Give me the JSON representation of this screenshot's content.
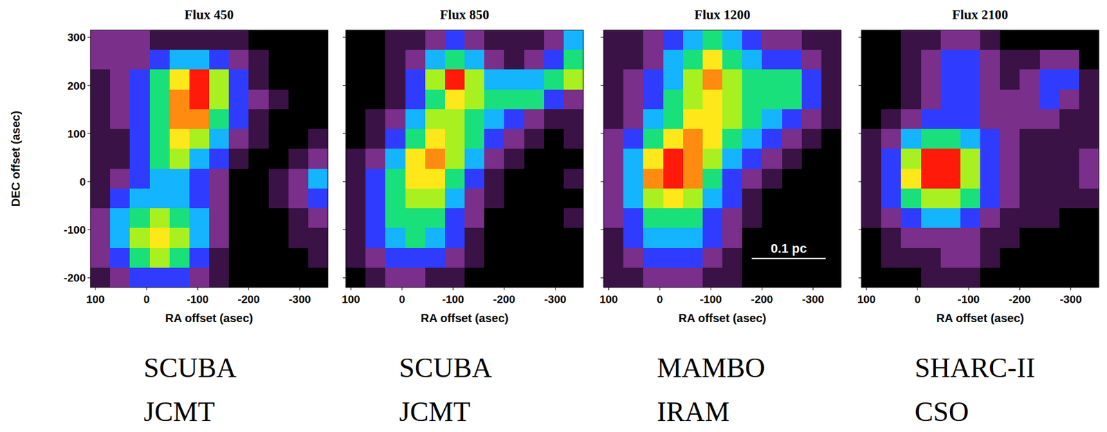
{
  "chart_data": [
    {
      "type": "heatmap",
      "title": "Flux 450",
      "x_label": "RA offset (asec)",
      "y_label": "DEC offset (asec)",
      "xlim": [
        110,
        -355
      ],
      "ylim": [
        -220,
        315
      ],
      "xticks": [
        100,
        0,
        -100,
        -200,
        -300
      ],
      "yticks": [
        -200,
        -100,
        0,
        100,
        200,
        300
      ],
      "zlim": [
        0,
        9
      ],
      "z": [
        [
          2,
          2,
          2,
          1,
          1,
          1,
          1,
          1,
          0,
          0,
          0,
          0
        ],
        [
          2,
          2,
          2,
          3,
          4,
          4,
          3,
          2,
          1,
          0,
          0,
          0
        ],
        [
          1,
          2,
          3,
          5,
          7,
          9,
          6,
          3,
          1,
          0,
          0,
          0
        ],
        [
          1,
          2,
          3,
          5,
          8,
          9,
          6,
          3,
          2,
          1,
          0,
          0
        ],
        [
          1,
          2,
          3,
          5,
          8,
          8,
          5,
          3,
          1,
          0,
          0,
          0
        ],
        [
          1,
          1,
          3,
          5,
          7,
          6,
          4,
          2,
          1,
          0,
          0,
          1
        ],
        [
          1,
          1,
          3,
          5,
          6,
          4,
          3,
          1,
          0,
          0,
          1,
          2
        ],
        [
          1,
          2,
          3,
          4,
          4,
          3,
          2,
          0,
          0,
          1,
          2,
          4
        ],
        [
          1,
          3,
          4,
          4,
          4,
          3,
          2,
          0,
          0,
          1,
          2,
          3
        ],
        [
          2,
          4,
          5,
          6,
          5,
          4,
          2,
          0,
          0,
          0,
          1,
          2
        ],
        [
          2,
          4,
          6,
          7,
          6,
          4,
          2,
          0,
          0,
          0,
          1,
          1
        ],
        [
          2,
          3,
          5,
          6,
          5,
          3,
          1,
          0,
          0,
          0,
          0,
          1
        ],
        [
          1,
          2,
          3,
          3,
          3,
          2,
          1,
          0,
          0,
          0,
          0,
          0
        ]
      ],
      "instrument": "SCUBA",
      "telescope": "JCMT"
    },
    {
      "type": "heatmap",
      "title": "Flux 850",
      "x_label": "RA offset (asec)",
      "tick_labels": "x",
      "xlim": [
        110,
        -355
      ],
      "ylim": [
        -220,
        315
      ],
      "xticks": [
        100,
        0,
        -100,
        -200,
        -300
      ],
      "yticks": [
        -200,
        -100,
        0,
        100,
        200,
        300
      ],
      "zlim": [
        0,
        9
      ],
      "z": [
        [
          0,
          0,
          1,
          1,
          2,
          3,
          2,
          1,
          1,
          1,
          2,
          4
        ],
        [
          0,
          0,
          1,
          2,
          4,
          5,
          4,
          2,
          1,
          2,
          3,
          5
        ],
        [
          0,
          0,
          1,
          3,
          6,
          9,
          6,
          4,
          4,
          4,
          5,
          6
        ],
        [
          0,
          0,
          1,
          3,
          5,
          7,
          6,
          5,
          5,
          5,
          3,
          2
        ],
        [
          0,
          1,
          2,
          4,
          6,
          6,
          5,
          4,
          3,
          2,
          1,
          1
        ],
        [
          0,
          1,
          3,
          5,
          7,
          6,
          5,
          3,
          2,
          1,
          0,
          1
        ],
        [
          1,
          2,
          4,
          7,
          8,
          6,
          4,
          2,
          1,
          0,
          0,
          0
        ],
        [
          1,
          3,
          5,
          7,
          7,
          5,
          3,
          1,
          0,
          0,
          0,
          1
        ],
        [
          1,
          3,
          5,
          6,
          6,
          4,
          2,
          1,
          0,
          0,
          0,
          0
        ],
        [
          1,
          3,
          5,
          5,
          5,
          3,
          2,
          0,
          0,
          0,
          0,
          1
        ],
        [
          1,
          3,
          4,
          5,
          4,
          3,
          1,
          0,
          0,
          0,
          0,
          0
        ],
        [
          1,
          2,
          3,
          3,
          3,
          2,
          1,
          0,
          0,
          0,
          0,
          0
        ],
        [
          0,
          1,
          2,
          2,
          1,
          1,
          0,
          0,
          0,
          0,
          0,
          0
        ]
      ],
      "instrument": "SCUBA",
      "telescope": "JCMT"
    },
    {
      "type": "heatmap",
      "title": "Flux 1200",
      "x_label": "RA offset (asec)",
      "tick_labels": "x",
      "xlim": [
        110,
        -355
      ],
      "ylim": [
        -220,
        315
      ],
      "xticks": [
        100,
        0,
        -100,
        -200,
        -300
      ],
      "yticks": [
        -200,
        -100,
        0,
        100,
        200,
        300
      ],
      "zlim": [
        0,
        9
      ],
      "z": [
        [
          1,
          1,
          2,
          3,
          4,
          5,
          4,
          3,
          2,
          2,
          1,
          1
        ],
        [
          1,
          1,
          2,
          4,
          5,
          7,
          5,
          4,
          3,
          3,
          2,
          1
        ],
        [
          1,
          2,
          3,
          4,
          6,
          8,
          6,
          5,
          5,
          5,
          3,
          1
        ],
        [
          1,
          2,
          3,
          5,
          6,
          7,
          6,
          5,
          5,
          5,
          3,
          1
        ],
        [
          1,
          2,
          4,
          5,
          7,
          7,
          6,
          5,
          4,
          3,
          2,
          1
        ],
        [
          2,
          3,
          5,
          7,
          8,
          7,
          5,
          4,
          3,
          2,
          1,
          0
        ],
        [
          2,
          4,
          7,
          9,
          8,
          6,
          4,
          3,
          2,
          1,
          0,
          0
        ],
        [
          2,
          4,
          8,
          9,
          8,
          5,
          3,
          2,
          1,
          0,
          0,
          0
        ],
        [
          2,
          4,
          6,
          7,
          6,
          4,
          3,
          1,
          0,
          0,
          0,
          0
        ],
        [
          2,
          3,
          5,
          5,
          5,
          3,
          2,
          1,
          0,
          0,
          0,
          0
        ],
        [
          1,
          3,
          4,
          4,
          4,
          3,
          2,
          0,
          0,
          0,
          0,
          0
        ],
        [
          1,
          2,
          3,
          3,
          3,
          2,
          1,
          0,
          0,
          0,
          0,
          0
        ],
        [
          1,
          1,
          2,
          2,
          2,
          1,
          1,
          0,
          0,
          0,
          0,
          0
        ]
      ],
      "scale_bar": {
        "label": "0.1 pc",
        "x": [
          -180,
          -325
        ],
        "y": -160
      },
      "instrument": "MAMBO",
      "telescope": "IRAM"
    },
    {
      "type": "heatmap",
      "title": "Flux 2100",
      "x_label": "RA offset (asec)",
      "tick_labels": "x",
      "xlim": [
        110,
        -355
      ],
      "ylim": [
        -220,
        315
      ],
      "xticks": [
        100,
        0,
        -100,
        -200,
        -300
      ],
      "yticks": [
        -200,
        -100,
        0,
        100,
        200,
        300
      ],
      "zlim": [
        0,
        9
      ],
      "z": [
        [
          0,
          0,
          1,
          1,
          2,
          2,
          1,
          0,
          0,
          0,
          0,
          0
        ],
        [
          0,
          0,
          1,
          2,
          3,
          3,
          2,
          1,
          1,
          2,
          2,
          0
        ],
        [
          0,
          0,
          1,
          2,
          3,
          3,
          2,
          1,
          2,
          3,
          3,
          1
        ],
        [
          0,
          0,
          1,
          2,
          3,
          3,
          2,
          2,
          2,
          3,
          2,
          1
        ],
        [
          0,
          1,
          2,
          3,
          3,
          3,
          2,
          2,
          2,
          2,
          1,
          1
        ],
        [
          1,
          2,
          4,
          5,
          5,
          4,
          3,
          2,
          1,
          1,
          1,
          1
        ],
        [
          1,
          3,
          6,
          9,
          9,
          6,
          3,
          2,
          1,
          1,
          1,
          2
        ],
        [
          1,
          3,
          7,
          9,
          9,
          6,
          3,
          2,
          1,
          1,
          1,
          2
        ],
        [
          1,
          3,
          5,
          6,
          6,
          5,
          3,
          2,
          1,
          1,
          1,
          1
        ],
        [
          1,
          2,
          3,
          4,
          4,
          3,
          2,
          1,
          1,
          1,
          0,
          0
        ],
        [
          0,
          1,
          2,
          2,
          2,
          2,
          1,
          1,
          0,
          0,
          0,
          0
        ],
        [
          0,
          1,
          1,
          1,
          2,
          2,
          1,
          0,
          0,
          0,
          0,
          0
        ],
        [
          0,
          0,
          0,
          1,
          1,
          1,
          0,
          0,
          0,
          0,
          0,
          0
        ]
      ],
      "instrument": "SHARC-II",
      "telescope": "CSO"
    }
  ]
}
